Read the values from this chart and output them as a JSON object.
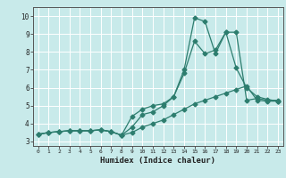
{
  "xlabel": "Humidex (Indice chaleur)",
  "bg_color": "#c8eaea",
  "line_color": "#2d7d6e",
  "grid_color": "#ffffff",
  "xlim": [
    -0.5,
    23.5
  ],
  "ylim": [
    2.75,
    10.5
  ],
  "xticks": [
    0,
    1,
    2,
    3,
    4,
    5,
    6,
    7,
    8,
    9,
    10,
    11,
    12,
    13,
    14,
    15,
    16,
    17,
    18,
    19,
    20,
    21,
    22,
    23
  ],
  "yticks": [
    3,
    4,
    5,
    6,
    7,
    8,
    9,
    10
  ],
  "line1_x": [
    0,
    1,
    2,
    3,
    4,
    5,
    6,
    7,
    8,
    9,
    10,
    11,
    12,
    13,
    14,
    15,
    16,
    17,
    18,
    19,
    20,
    21,
    22,
    23
  ],
  "line1_y": [
    3.4,
    3.5,
    3.55,
    3.6,
    3.6,
    3.6,
    3.65,
    3.55,
    3.35,
    3.8,
    4.5,
    4.65,
    5.0,
    5.5,
    6.8,
    8.6,
    7.9,
    8.1,
    9.1,
    9.1,
    5.3,
    5.4,
    5.3,
    5.3
  ],
  "line2_x": [
    0,
    1,
    2,
    3,
    4,
    5,
    6,
    7,
    8,
    9,
    10,
    11,
    12,
    13,
    14,
    15,
    16,
    17,
    18,
    19,
    20,
    21,
    22,
    23
  ],
  "line2_y": [
    3.4,
    3.5,
    3.55,
    3.6,
    3.6,
    3.6,
    3.65,
    3.55,
    3.35,
    4.4,
    4.8,
    5.0,
    5.1,
    5.5,
    7.0,
    9.9,
    9.7,
    7.9,
    9.1,
    7.1,
    6.0,
    5.5,
    5.35,
    5.25
  ],
  "line3_x": [
    0,
    1,
    2,
    3,
    4,
    5,
    6,
    7,
    8,
    9,
    10,
    11,
    12,
    13,
    14,
    15,
    16,
    17,
    18,
    19,
    20,
    21,
    22,
    23
  ],
  "line3_y": [
    3.4,
    3.5,
    3.55,
    3.6,
    3.6,
    3.6,
    3.65,
    3.55,
    3.35,
    3.5,
    3.8,
    4.0,
    4.2,
    4.5,
    4.8,
    5.1,
    5.3,
    5.5,
    5.7,
    5.9,
    6.1,
    5.3,
    5.25,
    5.25
  ]
}
